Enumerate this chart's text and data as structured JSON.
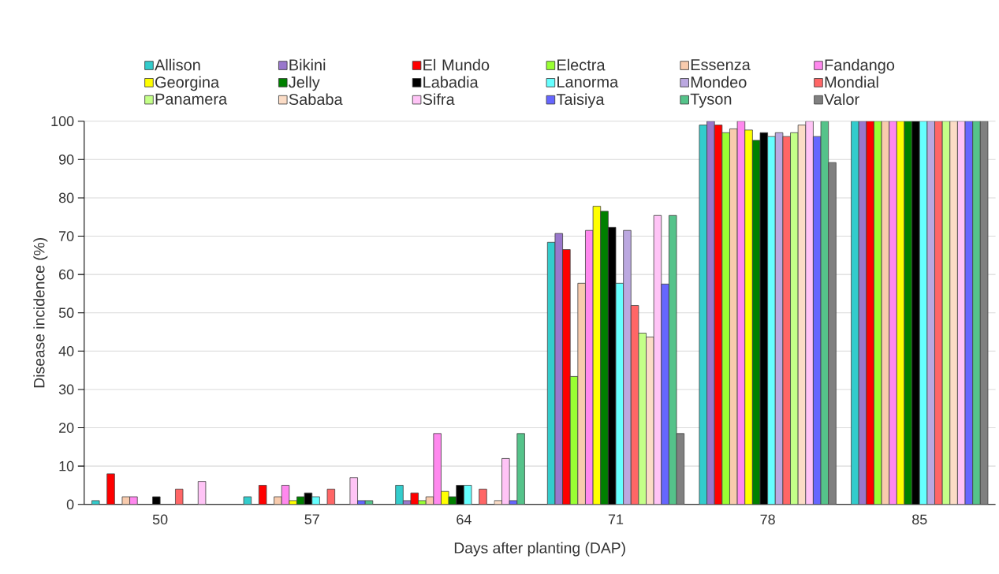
{
  "chart_data": {
    "type": "bar",
    "xlabel": "Days after planting (DAP)",
    "ylabel": "Disease incidence (%)",
    "categories": [
      "50",
      "57",
      "64",
      "71",
      "78",
      "85"
    ],
    "ylim": [
      0,
      100
    ],
    "yticks": [
      0,
      10,
      20,
      30,
      40,
      50,
      60,
      70,
      80,
      90,
      100
    ],
    "grid": "y",
    "legend": "top",
    "series": [
      {
        "name": "Allison",
        "color": "#33cccc",
        "values": [
          1,
          2,
          5,
          68.4,
          99,
          100
        ]
      },
      {
        "name": "Bikini",
        "color": "#9977cc",
        "values": [
          0,
          0,
          1,
          70.7,
          100,
          100
        ]
      },
      {
        "name": "El Mundo",
        "color": "#ff0000",
        "values": [
          8,
          5,
          3,
          66.5,
          99,
          100
        ]
      },
      {
        "name": "Electra",
        "color": "#99ff33",
        "values": [
          0,
          0,
          1,
          33.4,
          97,
          100
        ]
      },
      {
        "name": "Essenza",
        "color": "#f8cbad",
        "values": [
          2,
          2,
          2,
          57.7,
          98,
          100
        ]
      },
      {
        "name": "Fandango",
        "color": "#ff88ee",
        "values": [
          2,
          5,
          18.5,
          71.5,
          100,
          100
        ]
      },
      {
        "name": "Georgina",
        "color": "#ffff00",
        "values": [
          0,
          1,
          3.4,
          77.8,
          97.7,
          100
        ]
      },
      {
        "name": "Jelly",
        "color": "#008000",
        "values": [
          0,
          2,
          2,
          76.5,
          95,
          100
        ]
      },
      {
        "name": "Labadia",
        "color": "#000000",
        "values": [
          2,
          3,
          5,
          72.3,
          97,
          100
        ]
      },
      {
        "name": "Lanorma",
        "color": "#66ffff",
        "values": [
          0,
          2,
          5,
          57.7,
          96,
          100
        ]
      },
      {
        "name": "Mondeo",
        "color": "#bba8e0",
        "values": [
          0,
          0,
          0,
          71.5,
          97,
          100
        ]
      },
      {
        "name": "Mondial",
        "color": "#ff6666",
        "values": [
          4,
          4,
          4,
          51.9,
          96,
          100
        ]
      },
      {
        "name": "Panamera",
        "color": "#c4ff88",
        "values": [
          0,
          0,
          0,
          44.7,
          97,
          100
        ]
      },
      {
        "name": "Sababa",
        "color": "#fbdcc6",
        "values": [
          0,
          0,
          1,
          43.7,
          99,
          100
        ]
      },
      {
        "name": "Sifra",
        "color": "#ffc4f6",
        "values": [
          6,
          7,
          12,
          75.4,
          100,
          100
        ]
      },
      {
        "name": "Taisiya",
        "color": "#6666ff",
        "values": [
          0,
          1,
          1,
          57.5,
          96,
          100
        ]
      },
      {
        "name": "Tyson",
        "color": "#55c38a",
        "values": [
          0,
          1,
          18.5,
          75.4,
          100,
          100
        ]
      },
      {
        "name": "Valor",
        "color": "#808080",
        "values": [
          0,
          0,
          0,
          18.5,
          89.2,
          100
        ]
      }
    ]
  }
}
